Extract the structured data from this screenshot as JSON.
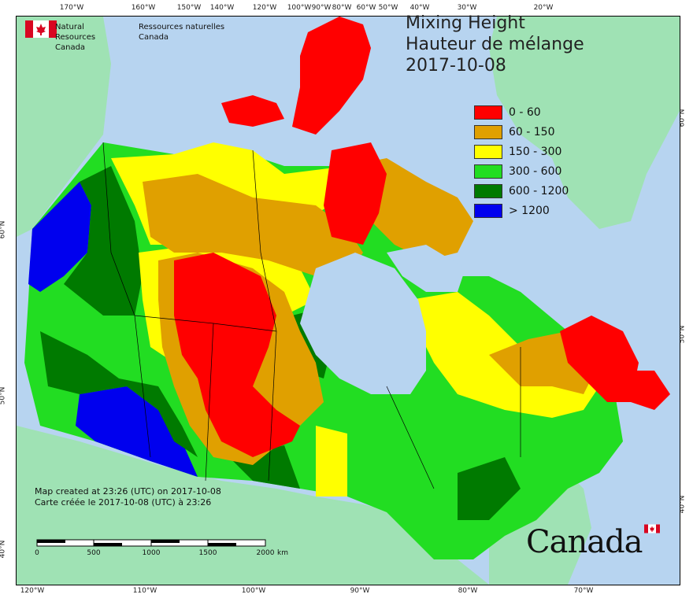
{
  "title": {
    "line1": "Mixing Height",
    "line2": "Hauteur de mélange",
    "date": "2017-10-08"
  },
  "agency": {
    "english": [
      "Natural Resources",
      "Canada"
    ],
    "french": [
      "Ressources naturelles",
      "Canada"
    ]
  },
  "legend": [
    {
      "label": "0 - 60",
      "color": "#ff0000"
    },
    {
      "label": "60 - 150",
      "color": "#e0a000"
    },
    {
      "label": "150 - 300",
      "color": "#ffff00"
    },
    {
      "label": "300 - 600",
      "color": "#22dd22"
    },
    {
      "label": "600 - 1200",
      "color": "#007a00"
    },
    {
      "label": "> 1200",
      "color": "#0000ee"
    }
  ],
  "caption": {
    "english": "Map created at 23:26 (UTC) on 2017-10-08",
    "french": "Carte créée le 2017-10-08 (UTC) à 23:26"
  },
  "scale_bar": {
    "labels": [
      "0",
      "500",
      "1000",
      "1500",
      "2000",
      "km"
    ]
  },
  "graticule": {
    "top": [
      "170°W",
      "160°W",
      "150°W",
      "140°W",
      "120°W",
      "100°W",
      "90°W",
      "80°W",
      "60°W",
      "50°W",
      "40°W",
      "30°W",
      "20°W"
    ],
    "bottom": [
      "120°W",
      "110°W",
      "100°W",
      "90°W",
      "80°W",
      "70°W"
    ],
    "left": [
      "60°N",
      "50°N",
      "40°N"
    ],
    "right": [
      "60°N",
      "50°N",
      "40°N"
    ]
  },
  "wordmark": "Canada",
  "colors": {
    "ocean": "#b7d4f0",
    "land_outside": "#9fe2b4",
    "border": "#000000"
  }
}
